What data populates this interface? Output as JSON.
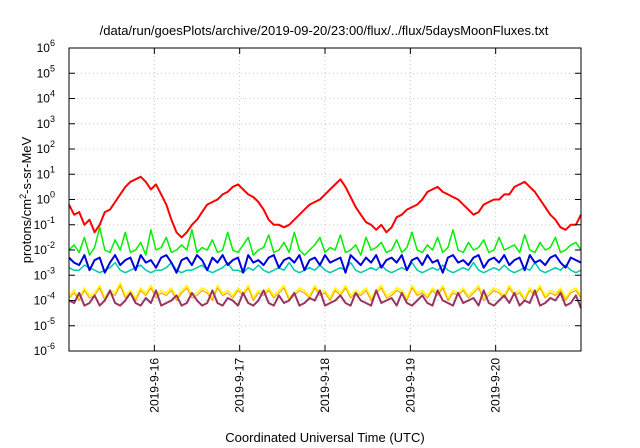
{
  "chart_data": {
    "type": "line",
    "title": "/data/run/goesPlots/archive/2019-09-20/23:00/flux/../flux/5daysMoonFluxes.txt",
    "xlabel": "Coordinated Universal Time (UTC)",
    "ylabel": {
      "base": "protons/cm",
      "exp": "2",
      "rest": "-s-sr-MeV"
    },
    "yscale": "log",
    "ylim_exp": [
      -6,
      6
    ],
    "y_ticks": [
      {
        "base": "10",
        "exp": "-6",
        "e": -6
      },
      {
        "base": "10",
        "exp": "-5",
        "e": -5
      },
      {
        "base": "10",
        "exp": "-4",
        "e": -4
      },
      {
        "base": "10",
        "exp": "-3",
        "e": -3
      },
      {
        "base": "10",
        "exp": "-2",
        "e": -2
      },
      {
        "base": "10",
        "exp": "-1",
        "e": -1
      },
      {
        "base": "10",
        "exp": "0",
        "e": 0
      },
      {
        "base": "10",
        "exp": "1",
        "e": 1
      },
      {
        "base": "10",
        "exp": "2",
        "e": 2
      },
      {
        "base": "10",
        "exp": "3",
        "e": 3
      },
      {
        "base": "10",
        "exp": "4",
        "e": 4
      },
      {
        "base": "10",
        "exp": "5",
        "e": 5
      },
      {
        "base": "10",
        "exp": "6",
        "e": 6
      }
    ],
    "xlim_days": [
      15.0,
      21.0
    ],
    "x_ticks": [
      {
        "label": "2019-9-16",
        "day": 16
      },
      {
        "label": "2019-9-17",
        "day": 17
      },
      {
        "label": "2019-9-18",
        "day": 18
      },
      {
        "label": "2019-9-19",
        "day": 19
      },
      {
        "label": "2019-9-20",
        "day": 20
      }
    ],
    "grid": true,
    "series": [
      {
        "color": "#ff0000",
        "width": 2,
        "log10_values": [
          -0.2,
          -0.6,
          -0.5,
          -1.0,
          -0.8,
          -1.3,
          -1.0,
          -0.5,
          -0.4,
          -0.1,
          0.2,
          0.5,
          0.7,
          0.8,
          0.9,
          0.7,
          0.4,
          0.6,
          0.2,
          -0.2,
          -0.8,
          -1.3,
          -1.5,
          -1.3,
          -1.0,
          -0.8,
          -0.5,
          -0.2,
          -0.1,
          0.0,
          0.2,
          0.3,
          0.5,
          0.6,
          0.4,
          0.2,
          0.1,
          -0.1,
          -0.4,
          -0.8,
          -1.0,
          -1.0,
          -1.1,
          -1.0,
          -0.8,
          -0.6,
          -0.4,
          -0.2,
          -0.1,
          0.0,
          0.2,
          0.4,
          0.6,
          0.8,
          0.5,
          0.1,
          -0.3,
          -0.6,
          -0.9,
          -1.0,
          -1.2,
          -1.0,
          -1.3,
          -1.1,
          -0.7,
          -0.6,
          -0.4,
          -0.3,
          -0.2,
          0.0,
          0.3,
          0.4,
          0.5,
          0.3,
          0.2,
          0.1,
          0.0,
          -0.2,
          -0.4,
          -0.6,
          -0.5,
          -0.2,
          -0.1,
          0.0,
          0.0,
          0.2,
          0.2,
          0.5,
          0.6,
          0.7,
          0.5,
          0.3,
          0.0,
          -0.3,
          -0.6,
          -0.8,
          -1.1,
          -1.2,
          -1.0,
          -1.0,
          -0.6
        ]
      },
      {
        "color": "#00ee00",
        "width": 1.5,
        "log10_values": [
          -2.0,
          -1.8,
          -2.1,
          -1.5,
          -2.2,
          -1.9,
          -1.1,
          -2.0,
          -2.1,
          -1.6,
          -2.0,
          -1.3,
          -2.1,
          -2.0,
          -1.7,
          -2.2,
          -1.2,
          -2.0,
          -1.9,
          -1.5,
          -2.1,
          -2.0,
          -1.8,
          -2.0,
          -1.2,
          -2.1,
          -1.9,
          -2.0,
          -1.6,
          -2.1,
          -2.0,
          -1.3,
          -2.0,
          -2.1,
          -1.8,
          -1.5,
          -2.2,
          -2.0,
          -1.9,
          -1.4,
          -2.1,
          -2.0,
          -1.7,
          -2.1,
          -1.3,
          -2.0,
          -2.2,
          -2.0,
          -1.8,
          -1.5,
          -2.1,
          -1.9,
          -2.0,
          -1.4,
          -2.1,
          -2.0,
          -1.8,
          -2.2,
          -1.5,
          -2.0,
          -1.9,
          -1.7,
          -2.1,
          -2.0,
          -1.6,
          -2.1,
          -1.9,
          -1.3,
          -2.0,
          -2.1,
          -1.8,
          -2.0,
          -1.5,
          -2.1,
          -1.9,
          -1.2,
          -2.0,
          -2.1,
          -1.7,
          -2.0,
          -1.9,
          -1.6,
          -2.1,
          -2.0,
          -1.5,
          -2.0,
          -1.9,
          -1.8,
          -2.1,
          -1.4,
          -2.0,
          -2.1,
          -1.7,
          -2.0,
          -1.9,
          -1.5,
          -2.1,
          -2.0,
          -1.8,
          -1.7,
          -2.0
        ]
      },
      {
        "color": "#00ccaa",
        "width": 1.5,
        "log10_values": [
          -2.7,
          -2.8,
          -2.8,
          -2.6,
          -2.7,
          -2.8,
          -2.9,
          -2.8,
          -2.7,
          -2.5,
          -2.8,
          -2.9,
          -2.8,
          -2.7,
          -2.6,
          -2.8,
          -2.9,
          -2.8,
          -2.8,
          -2.7,
          -2.5,
          -2.8,
          -2.9,
          -2.8,
          -2.8,
          -2.7,
          -2.6,
          -2.8,
          -2.9,
          -2.8,
          -2.7,
          -2.5,
          -2.8,
          -2.8,
          -2.9,
          -2.7,
          -2.8,
          -2.6,
          -2.8,
          -2.9,
          -2.8,
          -2.7,
          -2.8,
          -2.5,
          -2.8,
          -2.9,
          -2.8,
          -2.7,
          -2.8,
          -2.6,
          -2.8,
          -2.9,
          -2.8,
          -2.7,
          -2.8,
          -2.5,
          -2.8,
          -2.9,
          -2.8,
          -2.7,
          -2.8,
          -2.6,
          -2.8,
          -2.9,
          -2.8,
          -2.7,
          -2.8,
          -2.5,
          -2.8,
          -2.9,
          -2.8,
          -2.7,
          -2.8,
          -2.6,
          -2.8,
          -2.9,
          -2.8,
          -2.7,
          -2.8,
          -2.5,
          -2.8,
          -2.9,
          -2.8,
          -2.7,
          -2.8,
          -2.6,
          -2.8,
          -2.9,
          -2.8,
          -2.7,
          -2.8,
          -2.5,
          -2.8,
          -2.9,
          -2.8,
          -2.7,
          -2.8,
          -2.6,
          -2.8,
          -2.9,
          -2.8
        ]
      },
      {
        "color": "#0000dd",
        "width": 2,
        "log10_values": [
          -2.3,
          -2.5,
          -2.6,
          -2.2,
          -2.8,
          -2.4,
          -2.3,
          -2.9,
          -2.5,
          -2.2,
          -2.6,
          -2.4,
          -2.3,
          -2.8,
          -2.2,
          -2.5,
          -2.4,
          -2.7,
          -2.3,
          -2.2,
          -2.5,
          -2.9,
          -2.4,
          -2.3,
          -2.6,
          -2.2,
          -2.4,
          -2.8,
          -2.3,
          -2.5,
          -2.2,
          -2.6,
          -2.4,
          -2.3,
          -2.9,
          -2.2,
          -2.5,
          -2.4,
          -2.6,
          -2.3,
          -2.2,
          -2.7,
          -2.4,
          -2.3,
          -2.5,
          -2.2,
          -2.8,
          -2.4,
          -2.3,
          -2.6,
          -2.2,
          -2.5,
          -2.4,
          -2.3,
          -2.9,
          -2.2,
          -2.4,
          -2.6,
          -2.3,
          -2.5,
          -2.2,
          -2.7,
          -2.4,
          -2.3,
          -2.5,
          -2.2,
          -2.8,
          -2.4,
          -2.3,
          -2.6,
          -2.2,
          -2.5,
          -2.4,
          -2.9,
          -2.3,
          -2.2,
          -2.5,
          -2.4,
          -2.6,
          -2.3,
          -2.2,
          -2.7,
          -2.4,
          -2.3,
          -2.5,
          -2.2,
          -2.6,
          -2.4,
          -2.3,
          -2.8,
          -2.2,
          -2.5,
          -2.4,
          -2.6,
          -2.3,
          -2.2,
          -2.5,
          -2.7,
          -2.3,
          -2.4,
          -2.5
        ]
      },
      {
        "color": "#ffff00",
        "width": 1.5,
        "log10_values": [
          -3.8,
          -3.6,
          -3.9,
          -3.5,
          -3.8,
          -3.7,
          -3.4,
          -3.9,
          -3.6,
          -3.7,
          -3.3,
          -3.8,
          -3.6,
          -3.9,
          -3.5,
          -3.7,
          -3.4,
          -3.8,
          -3.6,
          -3.7,
          -3.5,
          -3.9,
          -3.6,
          -3.4,
          -3.8,
          -3.7,
          -3.5,
          -3.6,
          -3.9,
          -3.4,
          -3.7,
          -3.6,
          -3.8,
          -3.5,
          -3.7,
          -3.4,
          -3.9,
          -3.6,
          -3.7,
          -3.5,
          -3.8,
          -3.6,
          -3.4,
          -3.9,
          -3.7,
          -3.5,
          -3.6,
          -3.8,
          -3.4,
          -3.7,
          -3.6,
          -3.9,
          -3.5,
          -3.7,
          -3.4,
          -3.8,
          -3.6,
          -3.7,
          -3.5,
          -3.9,
          -3.6,
          -3.4,
          -3.8,
          -3.7,
          -3.5,
          -3.6,
          -3.9,
          -3.4,
          -3.7,
          -3.6,
          -3.8,
          -3.5,
          -3.7,
          -3.4,
          -3.9,
          -3.6,
          -3.7,
          -3.5,
          -3.8,
          -3.6,
          -3.4,
          -3.9,
          -3.7,
          -3.5,
          -3.6,
          -3.8,
          -3.4,
          -3.7,
          -3.6,
          -3.9,
          -3.5,
          -3.7,
          -3.4,
          -3.8,
          -3.6,
          -3.7,
          -3.5,
          -3.9,
          -3.6,
          -3.5,
          -3.8
        ]
      },
      {
        "color": "#ffa500",
        "width": 1.2,
        "log10_values": [
          -3.9,
          -3.7,
          -4.0,
          -3.6,
          -3.9,
          -3.8,
          -3.5,
          -4.0,
          -3.7,
          -3.8,
          -3.4,
          -3.9,
          -3.7,
          -4.0,
          -3.6,
          -3.8,
          -3.5,
          -3.9,
          -3.7,
          -3.8,
          -3.6,
          -4.0,
          -3.7,
          -3.5,
          -3.9,
          -3.8,
          -3.6,
          -3.7,
          -4.0,
          -3.5,
          -3.8,
          -3.7,
          -3.9,
          -3.6,
          -3.8,
          -3.5,
          -4.0,
          -3.7,
          -3.8,
          -3.6,
          -3.9,
          -3.7,
          -3.5,
          -4.0,
          -3.8,
          -3.6,
          -3.7,
          -3.9,
          -3.5,
          -3.8,
          -3.7,
          -4.0,
          -3.6,
          -3.8,
          -3.5,
          -3.9,
          -3.7,
          -3.8,
          -3.6,
          -4.0,
          -3.7,
          -3.5,
          -3.9,
          -3.8,
          -3.6,
          -3.7,
          -4.0,
          -3.5,
          -3.8,
          -3.7,
          -3.9,
          -3.6,
          -3.8,
          -3.5,
          -4.0,
          -3.7,
          -3.8,
          -3.6,
          -3.9,
          -3.7,
          -3.5,
          -4.0,
          -3.8,
          -3.6,
          -3.7,
          -3.9,
          -3.5,
          -3.8,
          -3.7,
          -4.0,
          -3.6,
          -3.8,
          -3.5,
          -3.9,
          -3.7,
          -3.8,
          -3.6,
          -4.0,
          -3.7,
          -3.6,
          -3.9
        ]
      },
      {
        "color": "#993366",
        "width": 2,
        "log10_values": [
          -4.0,
          -4.1,
          -3.7,
          -4.2,
          -4.1,
          -3.8,
          -4.2,
          -4.0,
          -3.6,
          -4.1,
          -4.2,
          -4.0,
          -3.7,
          -4.1,
          -4.2,
          -3.9,
          -4.1,
          -3.6,
          -4.2,
          -4.1,
          -4.0,
          -3.8,
          -4.2,
          -4.1,
          -3.7,
          -4.0,
          -4.2,
          -4.1,
          -3.6,
          -4.1,
          -4.2,
          -3.9,
          -4.0,
          -4.2,
          -3.7,
          -4.1,
          -4.2,
          -4.0,
          -3.6,
          -4.1,
          -4.2,
          -3.8,
          -4.1,
          -4.0,
          -3.7,
          -4.2,
          -4.1,
          -3.9,
          -4.0,
          -3.6,
          -4.2,
          -4.1,
          -4.0,
          -3.8,
          -4.1,
          -4.2,
          -3.7,
          -4.0,
          -4.1,
          -4.2,
          -3.6,
          -4.1,
          -4.0,
          -3.9,
          -4.2,
          -3.7,
          -4.1,
          -4.2,
          -4.0,
          -3.8,
          -4.1,
          -4.2,
          -3.6,
          -4.0,
          -4.1,
          -4.2,
          -3.7,
          -4.1,
          -4.0,
          -3.9,
          -4.2,
          -3.6,
          -4.1,
          -4.2,
          -4.0,
          -3.8,
          -4.1,
          -3.7,
          -4.2,
          -4.0,
          -4.1,
          -3.6,
          -4.2,
          -4.1,
          -3.9,
          -4.0,
          -3.7,
          -4.2,
          -4.1,
          -3.8,
          -4.3
        ]
      }
    ]
  }
}
